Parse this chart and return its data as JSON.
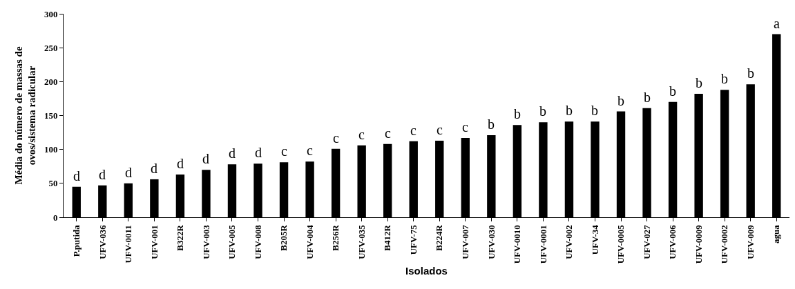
{
  "chart_data": {
    "type": "bar",
    "xlabel": "Isolados",
    "ylabel": "Média do número de massas de ovos/sistema radicular",
    "categories": [
      "P.putida",
      "UFV-036",
      "UFV-0011",
      "UFV-001",
      "B322R",
      "UFV-003",
      "UFV-005",
      "UFV-008",
      "B205R",
      "UFV-004",
      "B256R",
      "UFV-035",
      "B412R",
      "UFV-75",
      "B224R",
      "UFV-007",
      "UFV-030",
      "UFV-0010",
      "UFV-0001",
      "UFV-002",
      "UFV-34",
      "UFV-0005",
      "UFV-027",
      "UFV-006",
      "UFV-0009",
      "UFV-0002",
      "UFV-009",
      "agua"
    ],
    "values": [
      45,
      47,
      50,
      56,
      63,
      70,
      78,
      79,
      81,
      82,
      101,
      106,
      108,
      112,
      113,
      117,
      121,
      136,
      140,
      141,
      141,
      156,
      161,
      170,
      182,
      188,
      196,
      270
    ],
    "color": "#000000",
    "ylim": [
      0,
      300
    ],
    "yticks": [
      0,
      50,
      100,
      150,
      200,
      250,
      300
    ],
    "grid": false,
    "annotations": [
      {
        "text": "d",
        "x": "P.putida",
        "y": 45
      },
      {
        "text": "d",
        "x": "UFV-036",
        "y": 47
      },
      {
        "text": "d",
        "x": "UFV-0011",
        "y": 50
      },
      {
        "text": "d",
        "x": "UFV-001",
        "y": 56
      },
      {
        "text": "d",
        "x": "B322R",
        "y": 63
      },
      {
        "text": "d",
        "x": "UFV-003",
        "y": 70
      },
      {
        "text": "d",
        "x": "UFV-005",
        "y": 78
      },
      {
        "text": "d",
        "x": "UFV-008",
        "y": 79
      },
      {
        "text": "c",
        "x": "B205R",
        "y": 81
      },
      {
        "text": "c",
        "x": "UFV-004",
        "y": 82
      },
      {
        "text": "c",
        "x": "B256R",
        "y": 101
      },
      {
        "text": "c",
        "x": "UFV-035",
        "y": 106
      },
      {
        "text": "c",
        "x": "B412R",
        "y": 108
      },
      {
        "text": "c",
        "x": "UFV-75",
        "y": 112
      },
      {
        "text": "c",
        "x": "B224R",
        "y": 113
      },
      {
        "text": "c",
        "x": "UFV-007",
        "y": 117
      },
      {
        "text": "b",
        "x": "UFV-030",
        "y": 121
      },
      {
        "text": "b",
        "x": "UFV-0010",
        "y": 136
      },
      {
        "text": "b",
        "x": "UFV-0001",
        "y": 140
      },
      {
        "text": "b",
        "x": "UFV-002",
        "y": 141
      },
      {
        "text": "b",
        "x": "UFV-34",
        "y": 141
      },
      {
        "text": "b",
        "x": "UFV-0005",
        "y": 156
      },
      {
        "text": "b",
        "x": "UFV-027",
        "y": 161
      },
      {
        "text": "b",
        "x": "UFV-006",
        "y": 170
      },
      {
        "text": "b",
        "x": "UFV-0009",
        "y": 182
      },
      {
        "text": "b",
        "x": "UFV-0002",
        "y": 188
      },
      {
        "text": "b",
        "x": "UFV-009",
        "y": 196
      },
      {
        "text": "a",
        "x": "agua",
        "y": 270
      }
    ]
  }
}
